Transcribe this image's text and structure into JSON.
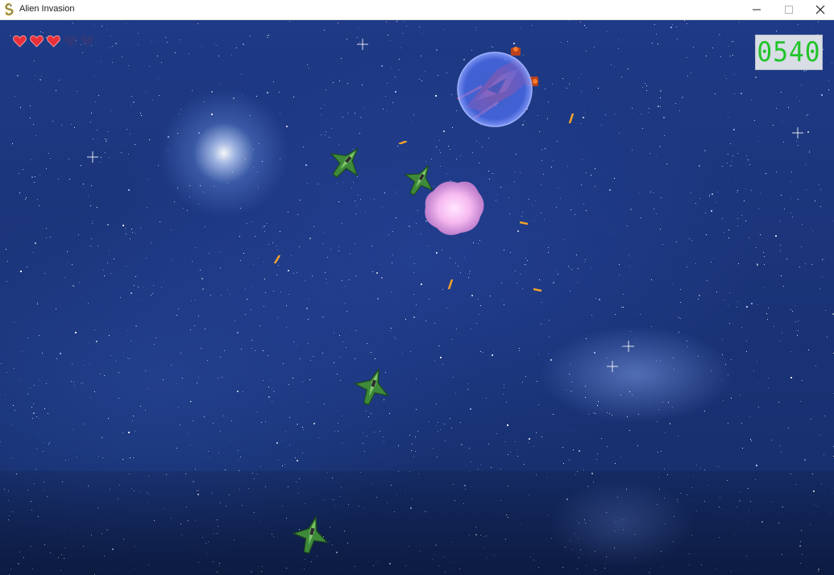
{
  "window": {
    "title": "Alien Invasion",
    "controls": [
      "minimize",
      "maximize",
      "close"
    ]
  },
  "hud": {
    "lives_total": 5,
    "lives_remaining": 3,
    "score": "0540",
    "score_color": "#22c42a",
    "heart_color": "#e8303a"
  },
  "scene": {
    "background": "starfield",
    "enemy_ships": 4,
    "boss_shielded": true,
    "explosion_visible": true,
    "projectiles": 7
  }
}
